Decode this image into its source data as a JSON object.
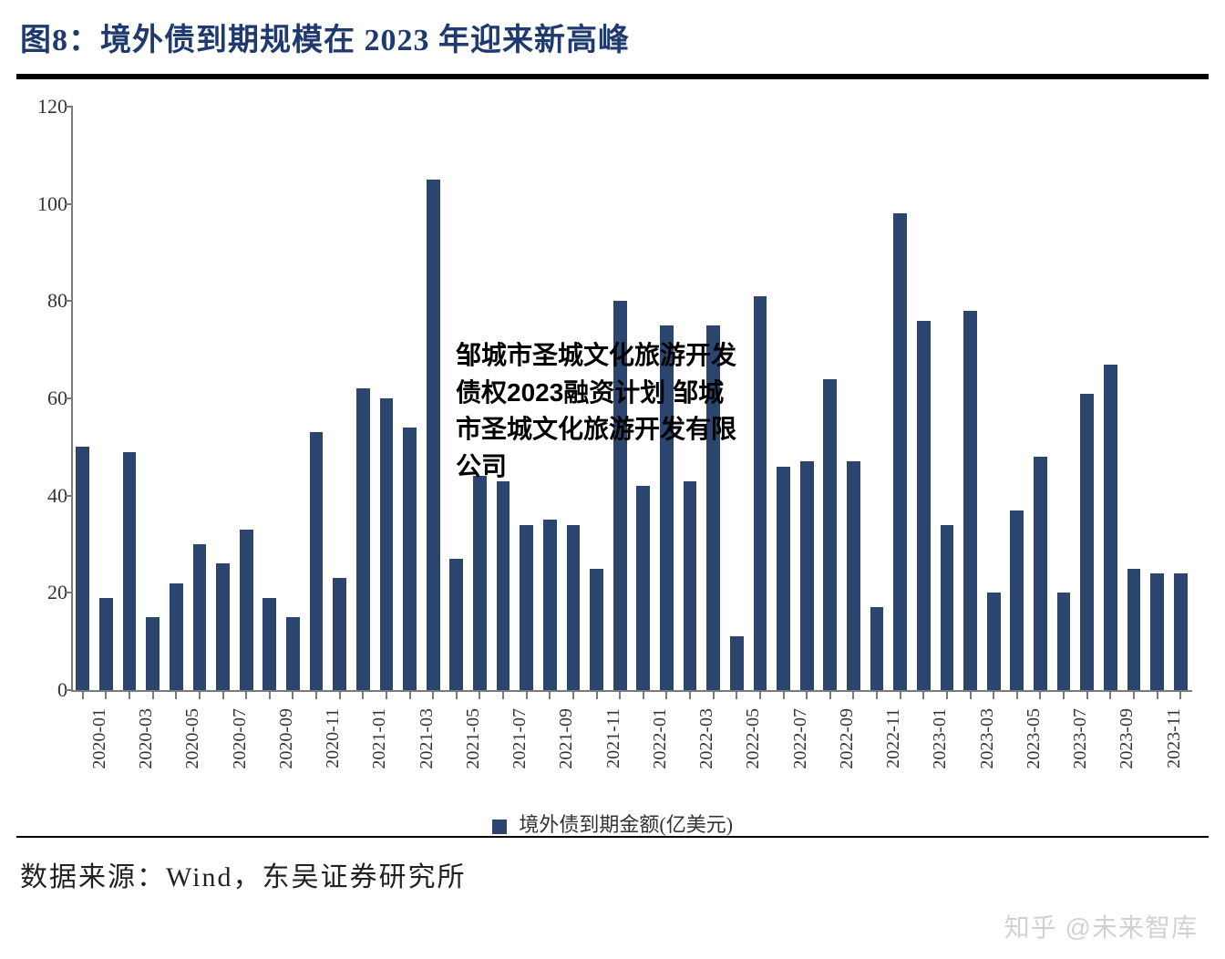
{
  "title": "图8：境外债到期规模在 2023 年迎来新高峰",
  "source": "数据来源：Wind，东吴证券研究所",
  "watermark": "知乎 @未来智库",
  "overlay": "邹城市圣城文化旅游开发债权2023融资计划 邹城市圣城文化旅游开发有限公司",
  "chart": {
    "type": "bar",
    "legend_label": "境外债到期金额(亿美元)",
    "bar_color": "#2c456f",
    "axis_color": "#7a7a7a",
    "text_color": "#333333",
    "background_color": "#ffffff",
    "title_color": "#1f3a6e",
    "ylim": [
      0,
      120
    ],
    "ytick_step": 20,
    "yticks": [
      0,
      20,
      40,
      60,
      80,
      100,
      120
    ],
    "bar_width_ratio": 0.58,
    "x_label_every": 2,
    "categories": [
      "2020-01",
      "2020-02",
      "2020-03",
      "2020-04",
      "2020-05",
      "2020-06",
      "2020-07",
      "2020-08",
      "2020-09",
      "2020-10",
      "2020-11",
      "2020-12",
      "2021-01",
      "2021-02",
      "2021-03",
      "2021-04",
      "2021-05",
      "2021-06",
      "2021-07",
      "2021-08",
      "2021-09",
      "2021-10",
      "2021-11",
      "2021-12",
      "2022-01",
      "2022-02",
      "2022-03",
      "2022-04",
      "2022-05",
      "2022-06",
      "2022-07",
      "2022-08",
      "2022-09",
      "2022-10",
      "2022-11",
      "2022-12",
      "2023-01",
      "2023-02",
      "2023-03",
      "2023-04",
      "2023-05",
      "2023-06",
      "2023-07",
      "2023-08",
      "2023-09",
      "2023-10",
      "2023-11",
      "2023-12"
    ],
    "values": [
      50,
      19,
      49,
      15,
      22,
      30,
      26,
      33,
      19,
      15,
      53,
      23,
      62,
      60,
      54,
      105,
      27,
      44,
      43,
      34,
      35,
      34,
      25,
      80,
      42,
      75,
      43,
      75,
      11,
      81,
      46,
      47,
      64,
      47,
      17,
      98,
      76,
      34,
      78,
      20,
      37,
      48,
      20,
      61,
      67,
      25,
      24,
      24
    ]
  }
}
